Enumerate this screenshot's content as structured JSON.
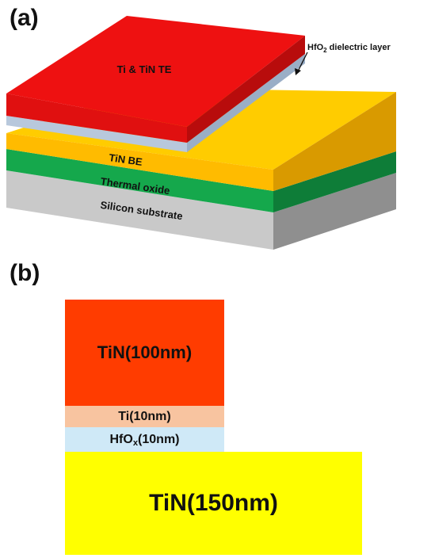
{
  "panel_a": {
    "label": "(a)",
    "layers": {
      "top_electrode": "Ti & TiN TE",
      "dielectric_prefix": "HfO",
      "dielectric_sub": "2",
      "dielectric_suffix": " dielectric layer",
      "bottom_electrode": "TiN BE",
      "oxide": "Thermal oxide",
      "substrate": "Silicon substrate"
    },
    "colors": {
      "top_electrode": "#ee1c1c",
      "dielectric": "#b8c8dc",
      "bottom_electrode": "#ffc000",
      "oxide": "#15a84c",
      "substrate": "#bdbdbd"
    }
  },
  "panel_b": {
    "label": "(b)",
    "layers": {
      "tin_top": "TiN(100nm)",
      "ti": "Ti(10nm)",
      "hfox_prefix": "HfO",
      "hfox_sub": "x",
      "hfox_suffix": "(10nm)",
      "tin_bottom": "TiN(150nm)"
    },
    "colors": {
      "tin_top": "#ff3c00",
      "ti": "#f8c4a0",
      "hfox": "#cfe9f7",
      "tin_bottom": "#ffff00"
    }
  }
}
